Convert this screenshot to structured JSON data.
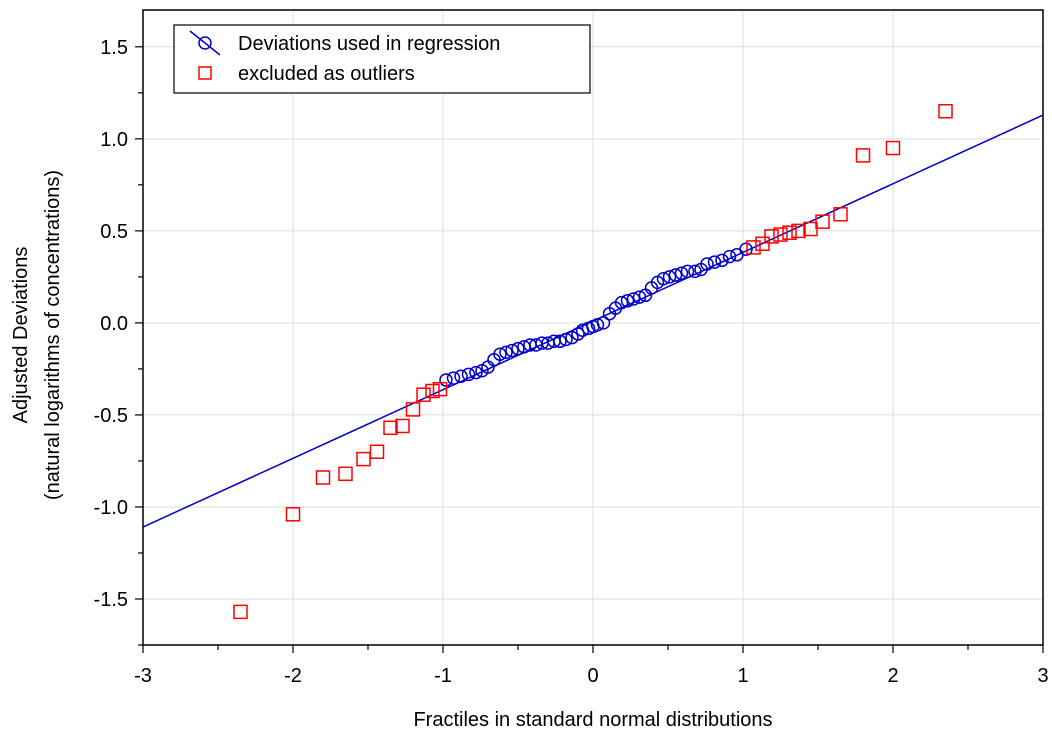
{
  "chart_data": {
    "type": "scatter",
    "title": "",
    "xlabel": "Fractiles in standard normal distributions",
    "ylabel_lines": [
      "Adjusted Deviations",
      "(natural logarithms of concentrations)"
    ],
    "xlim": [
      -3,
      3
    ],
    "ylim": [
      -1.75,
      1.7
    ],
    "x_ticks": [
      -3,
      -2,
      -1,
      0,
      1,
      2,
      3
    ],
    "x_tick_labels": [
      "-3",
      "-2",
      "-1",
      "0",
      "1",
      "2",
      "3"
    ],
    "y_ticks": [
      -1.5,
      -1.0,
      -0.5,
      0.0,
      0.5,
      1.0,
      1.5
    ],
    "y_tick_labels": [
      "-1.5",
      "-1.0",
      "-0.5",
      "0.0",
      "0.5",
      "1.0",
      "1.5"
    ],
    "grid": true,
    "legend_position": "top-left",
    "regression_line": {
      "slope": 0.373,
      "intercept": 0.01,
      "color": "#0000cc"
    },
    "series": [
      {
        "name": "Deviations used in regression",
        "marker": "circle",
        "color": "#0000cc",
        "points": [
          [
            -0.98,
            -0.31
          ],
          [
            -0.93,
            -0.3
          ],
          [
            -0.88,
            -0.29
          ],
          [
            -0.83,
            -0.28
          ],
          [
            -0.78,
            -0.27
          ],
          [
            -0.74,
            -0.26
          ],
          [
            -0.7,
            -0.24
          ],
          [
            -0.66,
            -0.2
          ],
          [
            -0.62,
            -0.17
          ],
          [
            -0.58,
            -0.16
          ],
          [
            -0.54,
            -0.15
          ],
          [
            -0.5,
            -0.14
          ],
          [
            -0.46,
            -0.13
          ],
          [
            -0.42,
            -0.12
          ],
          [
            -0.38,
            -0.12
          ],
          [
            -0.34,
            -0.11
          ],
          [
            -0.3,
            -0.11
          ],
          [
            -0.26,
            -0.1
          ],
          [
            -0.22,
            -0.1
          ],
          [
            -0.18,
            -0.09
          ],
          [
            -0.14,
            -0.08
          ],
          [
            -0.1,
            -0.06
          ],
          [
            -0.07,
            -0.04
          ],
          [
            -0.03,
            -0.03
          ],
          [
            0.0,
            -0.02
          ],
          [
            0.03,
            -0.01
          ],
          [
            0.07,
            0.0
          ],
          [
            0.11,
            0.05
          ],
          [
            0.15,
            0.08
          ],
          [
            0.19,
            0.11
          ],
          [
            0.23,
            0.12
          ],
          [
            0.27,
            0.13
          ],
          [
            0.31,
            0.14
          ],
          [
            0.35,
            0.15
          ],
          [
            0.39,
            0.19
          ],
          [
            0.43,
            0.22
          ],
          [
            0.47,
            0.24
          ],
          [
            0.51,
            0.25
          ],
          [
            0.55,
            0.26
          ],
          [
            0.59,
            0.27
          ],
          [
            0.63,
            0.28
          ],
          [
            0.68,
            0.28
          ],
          [
            0.72,
            0.29
          ],
          [
            0.76,
            0.32
          ],
          [
            0.81,
            0.33
          ],
          [
            0.86,
            0.34
          ],
          [
            0.91,
            0.36
          ],
          [
            0.96,
            0.37
          ],
          [
            1.02,
            0.4
          ]
        ]
      },
      {
        "name": "excluded as outliers",
        "marker": "square",
        "color": "#ff0000",
        "points": [
          [
            -2.35,
            -1.57
          ],
          [
            -2.0,
            -1.04
          ],
          [
            -1.8,
            -0.84
          ],
          [
            -1.65,
            -0.82
          ],
          [
            -1.53,
            -0.74
          ],
          [
            -1.44,
            -0.7
          ],
          [
            -1.35,
            -0.57
          ],
          [
            -1.27,
            -0.56
          ],
          [
            -1.2,
            -0.47
          ],
          [
            -1.13,
            -0.39
          ],
          [
            -1.07,
            -0.37
          ],
          [
            -1.02,
            -0.36
          ],
          [
            1.07,
            0.41
          ],
          [
            1.13,
            0.43
          ],
          [
            1.19,
            0.47
          ],
          [
            1.25,
            0.48
          ],
          [
            1.31,
            0.49
          ],
          [
            1.37,
            0.5
          ],
          [
            1.45,
            0.51
          ],
          [
            1.53,
            0.55
          ],
          [
            1.65,
            0.59
          ],
          [
            1.8,
            0.91
          ],
          [
            2.0,
            0.95
          ],
          [
            2.35,
            1.15
          ]
        ]
      }
    ]
  }
}
